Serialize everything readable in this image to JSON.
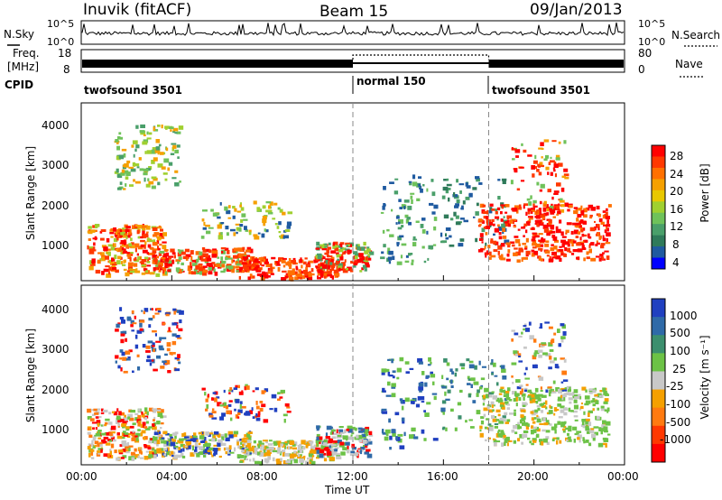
{
  "header": {
    "station": "Inuvik (fitACF)",
    "beam": "Beam 15",
    "date": "09/Jan/2013"
  },
  "top_panels": {
    "nsky_label": "N.Sky",
    "nsky_ticks": [
      "10^5",
      "10^0"
    ],
    "nsearch_label": "N.Search",
    "freq_label_1": "Freq.",
    "freq_label_2": "[MHz]",
    "freq_ticks": [
      "18",
      "8"
    ],
    "nave_label": "Nave",
    "nave_ticks": [
      "80",
      "0"
    ],
    "nsearch_ticks": [
      "10^5",
      "10^0"
    ],
    "cpid_label": "CPID"
  },
  "cpid_segments": [
    {
      "label": "twofsound 3501",
      "start_hour": 0,
      "end_hour": 12
    },
    {
      "label": "normal 150",
      "start_hour": 12,
      "end_hour": 18
    },
    {
      "label": "twofsound 3501",
      "start_hour": 18,
      "end_hour": 24
    }
  ],
  "axes": {
    "ylabel": "Slant Range [km]",
    "xlabel": "Time UT",
    "y_ticks": [
      "1000",
      "2000",
      "3000",
      "4000"
    ],
    "x_ticks": [
      "00:00",
      "04:00",
      "08:00",
      "12:00",
      "16:00",
      "20:00",
      "00:00"
    ]
  },
  "power_colorbar": {
    "title": "Power [dB]",
    "ticks": [
      "28",
      "24",
      "20",
      "16",
      "12",
      "8",
      "4"
    ],
    "colors": [
      "#ff0000",
      "#ff3800",
      "#ff7000",
      "#f5a000",
      "#e8c800",
      "#a0d030",
      "#6fc25a",
      "#4a9f6a",
      "#2f7a5a",
      "#1f5aa0",
      "#0000ff"
    ]
  },
  "velocity_colorbar": {
    "title": "Velocity [m s⁻¹]",
    "ticks": [
      "1000",
      "500",
      "100",
      "25",
      "-25",
      "-100",
      "-500",
      "-1000"
    ],
    "colors": [
      "#2040c0",
      "#2f6aa8",
      "#3c8f6e",
      "#6cc246",
      "#c8c8c8",
      "#f5a000",
      "#ff7a10",
      "#ff3800",
      "#ff0000"
    ]
  },
  "chart_data": {
    "type": "heatmap",
    "title": "Inuvik (fitACF) Beam 15 09/Jan/2013",
    "xlabel": "Time UT",
    "ylabel": "Slant Range [km]",
    "xlim": [
      0,
      24
    ],
    "ylim": [
      180,
      4600
    ],
    "x_ticks": [
      "00:00",
      "04:00",
      "08:00",
      "12:00",
      "16:00",
      "20:00",
      "00:00"
    ],
    "y_ticks": [
      1000,
      2000,
      3000,
      4000
    ],
    "series": [
      {
        "name": "Power [dB]",
        "colorbar_ticks": [
          4,
          8,
          12,
          16,
          20,
          24,
          28
        ]
      },
      {
        "name": "Velocity [m s-1]",
        "colorbar_ticks": [
          -1000,
          -500,
          -100,
          -25,
          25,
          100,
          500,
          1000
        ]
      }
    ],
    "cpid_changes_hours": [
      12,
      18
    ],
    "freq_mhz_ticks": [
      8,
      18
    ],
    "nave_ticks": [
      0,
      80
    ]
  }
}
